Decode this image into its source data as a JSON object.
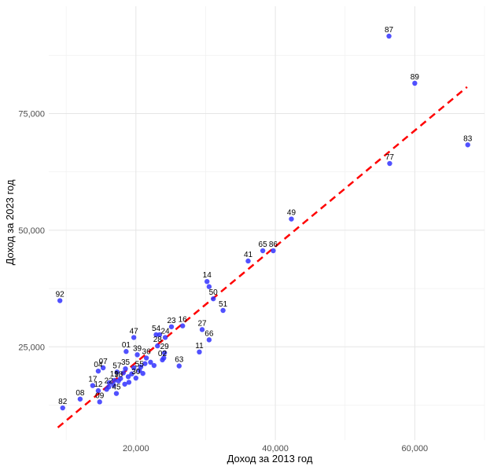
{
  "chart_data": {
    "type": "scatter",
    "xlabel": "Доход за 2013 год",
    "ylabel": "Доход за 2023 год",
    "xlim": [
      7500,
      70000
    ],
    "ylim": [
      5000,
      98000
    ],
    "x_ticks": [
      20000,
      40000,
      60000
    ],
    "x_tick_labels": [
      "20,000",
      "40,000",
      "60,000"
    ],
    "y_ticks": [
      25000,
      50000,
      75000
    ],
    "y_tick_labels": [
      "25,000",
      "50,000",
      "75,000"
    ],
    "grid": true,
    "point_color": "#3333ff",
    "trend_line": {
      "x": [
        8800,
        67500
      ],
      "y": [
        7700,
        80700
      ],
      "color": "#ff0000",
      "style": "dashed"
    },
    "points": [
      {
        "label": "87",
        "x": 56300,
        "y": 91600
      },
      {
        "label": "89",
        "x": 60000,
        "y": 81500
      },
      {
        "label": "83",
        "x": 67600,
        "y": 68300
      },
      {
        "label": "77",
        "x": 56400,
        "y": 64300
      },
      {
        "label": "49",
        "x": 42300,
        "y": 52400
      },
      {
        "label": "65",
        "x": 38200,
        "y": 45600
      },
      {
        "label": "86",
        "x": 39700,
        "y": 45600
      },
      {
        "label": "41",
        "x": 36100,
        "y": 43400
      },
      {
        "label": "14",
        "x": 30200,
        "y": 39000
      },
      {
        "label": "",
        "x": 30500,
        "y": 37900
      },
      {
        "label": "92",
        "x": 9100,
        "y": 34900
      },
      {
        "label": "50",
        "x": 31100,
        "y": 35300
      },
      {
        "label": "51",
        "x": 32500,
        "y": 32800
      },
      {
        "label": "16",
        "x": 26700,
        "y": 29500
      },
      {
        "label": "23",
        "x": 25100,
        "y": 29300
      },
      {
        "label": "27",
        "x": 29500,
        "y": 28700
      },
      {
        "label": "54",
        "x": 22900,
        "y": 27600
      },
      {
        "label": "",
        "x": 23400,
        "y": 27600
      },
      {
        "label": "47",
        "x": 19700,
        "y": 27000
      },
      {
        "label": "24",
        "x": 24200,
        "y": 27000
      },
      {
        "label": "66",
        "x": 30500,
        "y": 26500
      },
      {
        "label": "28",
        "x": 23100,
        "y": 25200
      },
      {
        "label": "01",
        "x": 18600,
        "y": 24000
      },
      {
        "label": "11",
        "x": 29100,
        "y": 23900
      },
      {
        "label": "29",
        "x": 24100,
        "y": 23700
      },
      {
        "label": "39",
        "x": 20200,
        "y": 23300
      },
      {
        "label": "36",
        "x": 21500,
        "y": 22600
      },
      {
        "label": "02",
        "x": 23800,
        "y": 22200
      },
      {
        "label": "63",
        "x": 26200,
        "y": 20900
      },
      {
        "label": "07",
        "x": 15300,
        "y": 20500
      },
      {
        "label": "35",
        "x": 18500,
        "y": 20300
      },
      {
        "label": "55",
        "x": 20500,
        "y": 19900
      },
      {
        "label": "04",
        "x": 14600,
        "y": 19800
      },
      {
        "label": "57",
        "x": 17300,
        "y": 19600
      },
      {
        "label": "30",
        "x": 20000,
        "y": 18300
      },
      {
        "label": "19",
        "x": 16900,
        "y": 17800
      },
      {
        "label": "18",
        "x": 17500,
        "y": 17700
      },
      {
        "label": "17",
        "x": 13800,
        "y": 16700
      },
      {
        "label": "22",
        "x": 16100,
        "y": 16400
      },
      {
        "label": "12",
        "x": 14600,
        "y": 15600
      },
      {
        "label": "45",
        "x": 17200,
        "y": 15000
      },
      {
        "label": "08",
        "x": 12000,
        "y": 13800
      },
      {
        "label": "09",
        "x": 14800,
        "y": 13200
      },
      {
        "label": "82",
        "x": 9500,
        "y": 11900
      },
      {
        "label": "",
        "x": 16800,
        "y": 16800
      },
      {
        "label": "",
        "x": 17800,
        "y": 18200
      },
      {
        "label": "",
        "x": 18200,
        "y": 19400
      },
      {
        "label": "",
        "x": 18900,
        "y": 18600
      },
      {
        "label": "",
        "x": 19400,
        "y": 19200
      },
      {
        "label": "",
        "x": 19000,
        "y": 17400
      },
      {
        "label": "",
        "x": 20700,
        "y": 20700
      },
      {
        "label": "",
        "x": 21300,
        "y": 21400
      },
      {
        "label": "",
        "x": 22100,
        "y": 21700
      },
      {
        "label": "",
        "x": 22600,
        "y": 21000
      },
      {
        "label": "",
        "x": 24000,
        "y": 22600
      },
      {
        "label": "",
        "x": 18400,
        "y": 17000
      },
      {
        "label": "",
        "x": 16200,
        "y": 17300
      },
      {
        "label": "",
        "x": 15800,
        "y": 15900
      },
      {
        "label": "",
        "x": 19700,
        "y": 20500
      },
      {
        "label": "",
        "x": 21000,
        "y": 19300
      }
    ]
  }
}
